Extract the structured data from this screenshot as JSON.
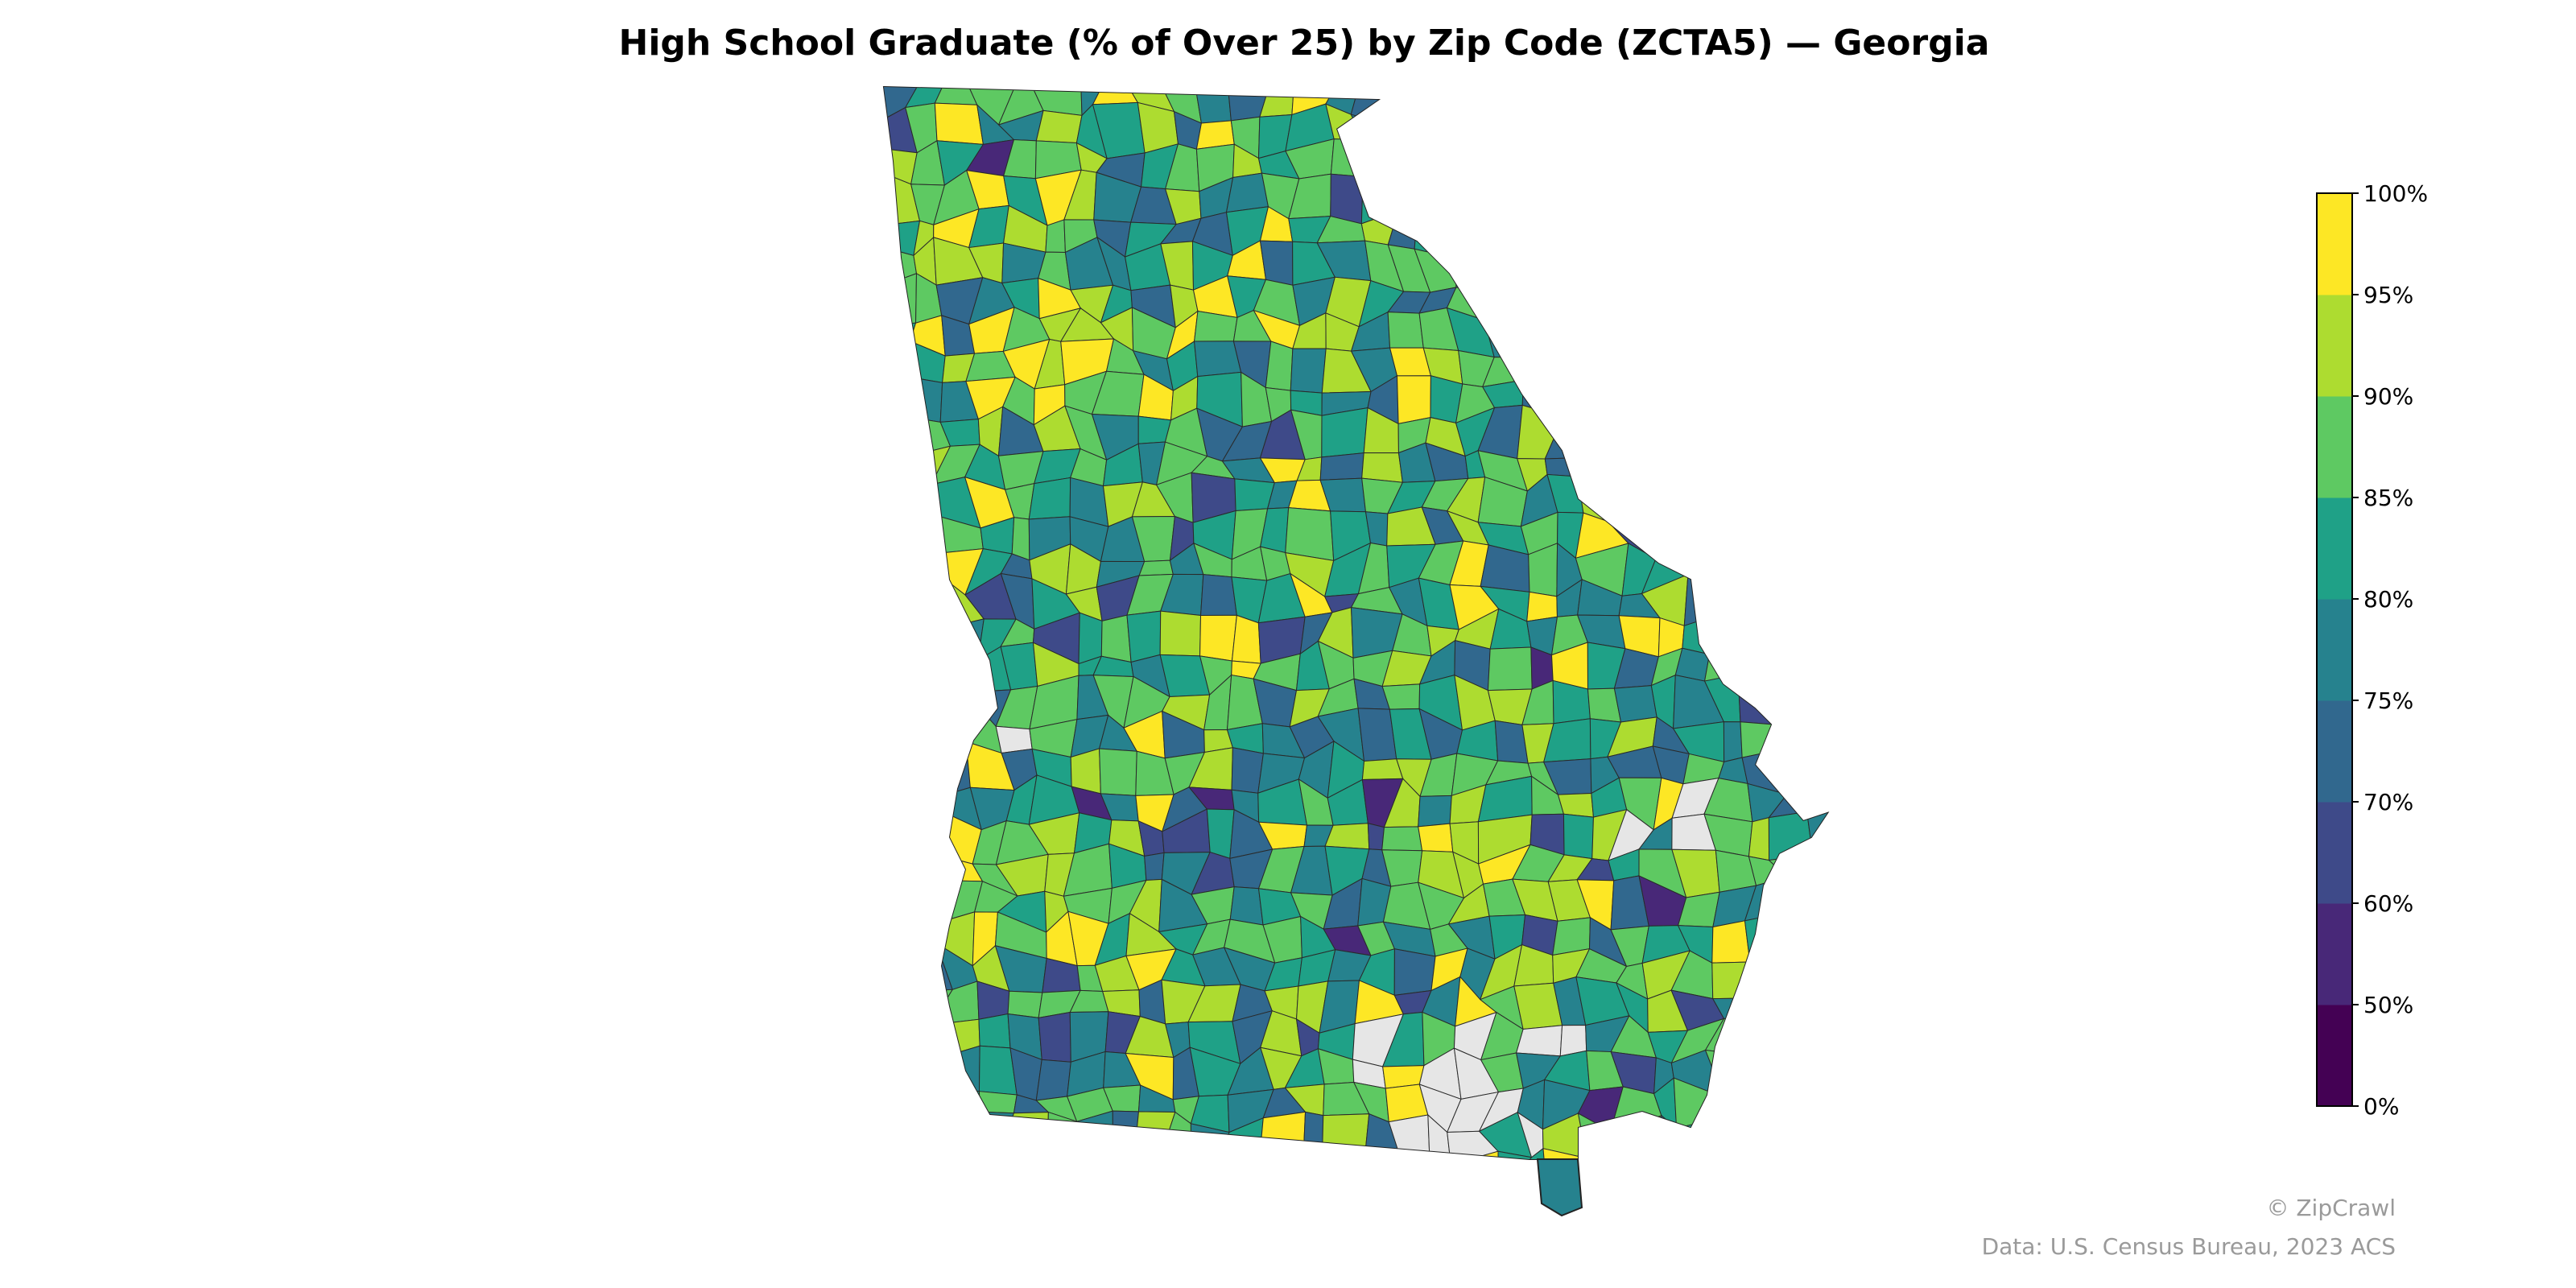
{
  "title": "High School Graduate (% of Over 25) by Zip Code (ZCTA5) — Georgia",
  "colorbar": {
    "ticks": [
      "0%",
      "50%",
      "60%",
      "70%",
      "75%",
      "80%",
      "85%",
      "90%",
      "95%",
      "100%"
    ],
    "bins": [
      {
        "range": "0–50%",
        "color": "#440154"
      },
      {
        "range": "50–60%",
        "color": "#482878"
      },
      {
        "range": "60–70%",
        "color": "#3e4a89"
      },
      {
        "range": "70–75%",
        "color": "#31688e"
      },
      {
        "range": "75–80%",
        "color": "#26828e"
      },
      {
        "range": "80–85%",
        "color": "#1fa187"
      },
      {
        "range": "85–90%",
        "color": "#5ec962"
      },
      {
        "range": "90–95%",
        "color": "#addc30"
      },
      {
        "range": "95–100%",
        "color": "#fde725"
      }
    ],
    "no_data_color": "#e6e6e6"
  },
  "credit": "© ZipCrawl",
  "source": "Data: U.S. Census Bureau, 2023 ACS"
}
